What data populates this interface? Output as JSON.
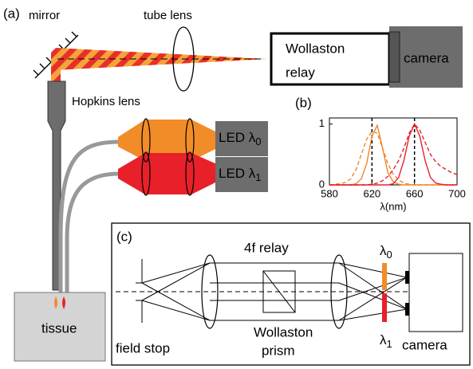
{
  "panel_a": {
    "label": "(a)",
    "mirror": "mirror",
    "tube_lens": "tube lens",
    "relay_line1": "Wollaston",
    "relay_line2": "relay",
    "camera": "camera",
    "hopkins": "Hopkins lens",
    "led0": {
      "text": "LED λ",
      "sub": "0"
    },
    "led1": {
      "text": "LED λ",
      "sub": "1"
    },
    "tissue": "tissue"
  },
  "chart_data": {
    "type": "line",
    "title": "(b)",
    "x_label": "λ(nm)",
    "x": [
      580,
      585,
      590,
      595,
      600,
      605,
      610,
      615,
      620,
      625,
      630,
      635,
      640,
      645,
      650,
      655,
      660,
      665,
      670,
      675,
      680,
      685,
      690,
      695,
      700
    ],
    "series": [
      {
        "color": "#f0862a",
        "dash": false,
        "values": [
          0,
          0,
          0,
          0,
          0,
          0.02,
          0.1,
          0.35,
          0.8,
          0.98,
          0.6,
          0.2,
          0.05,
          0.01,
          0,
          0,
          0,
          0,
          0,
          0,
          0,
          0,
          0,
          0,
          0
        ]
      },
      {
        "color": "#f0862a",
        "dash": true,
        "values": [
          0,
          0.01,
          0.02,
          0.04,
          0.1,
          0.25,
          0.5,
          0.75,
          0.88,
          0.85,
          0.6,
          0.35,
          0.18,
          0.08,
          0.03,
          0.01,
          0,
          0,
          0,
          0,
          0,
          0,
          0,
          0,
          0
        ]
      },
      {
        "color": "#e8202a",
        "dash": false,
        "values": [
          0,
          0,
          0,
          0,
          0,
          0,
          0,
          0,
          0,
          0,
          0,
          0,
          0.02,
          0.12,
          0.4,
          0.8,
          1,
          0.8,
          0.4,
          0.12,
          0.03,
          0.01,
          0,
          0,
          0
        ]
      },
      {
        "color": "#e8202a",
        "dash": true,
        "values": [
          0,
          0,
          0,
          0,
          0,
          0,
          0,
          0,
          0.01,
          0.03,
          0.07,
          0.14,
          0.25,
          0.4,
          0.6,
          0.85,
          1,
          0.9,
          0.7,
          0.5,
          0.38,
          0.3,
          0.25,
          0.2,
          0.17
        ]
      }
    ],
    "markers": [
      620,
      660
    ],
    "xlim": [
      580,
      700
    ],
    "xticks": [
      580,
      620,
      660,
      700
    ],
    "ylim": [
      0,
      1.1
    ],
    "yticks": [
      0,
      1
    ]
  },
  "panel_c": {
    "label": "(c)",
    "relay": "4f relay",
    "lambda0": {
      "text": "λ",
      "sub": "0"
    },
    "lambda1": {
      "text": "λ",
      "sub": "1"
    },
    "field_stop": "field stop",
    "prism_line1": "Wollaston",
    "prism_line2": "prism",
    "camera": "camera"
  }
}
